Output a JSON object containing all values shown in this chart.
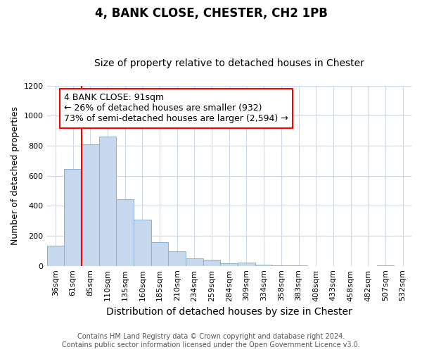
{
  "title": "4, BANK CLOSE, CHESTER, CH2 1PB",
  "subtitle": "Size of property relative to detached houses in Chester",
  "xlabel": "Distribution of detached houses by size in Chester",
  "ylabel": "Number of detached properties",
  "bar_labels": [
    "36sqm",
    "61sqm",
    "85sqm",
    "110sqm",
    "135sqm",
    "160sqm",
    "185sqm",
    "210sqm",
    "234sqm",
    "259sqm",
    "284sqm",
    "309sqm",
    "334sqm",
    "358sqm",
    "383sqm",
    "408sqm",
    "433sqm",
    "458sqm",
    "482sqm",
    "507sqm",
    "532sqm"
  ],
  "bar_values": [
    135,
    645,
    810,
    860,
    445,
    310,
    160,
    95,
    50,
    40,
    15,
    20,
    10,
    5,
    5,
    0,
    0,
    0,
    0,
    5,
    0
  ],
  "bar_color": "#c5d8ed",
  "bar_edge_color": "#8ab0d0",
  "ylim": [
    0,
    1200
  ],
  "yticks": [
    0,
    200,
    400,
    600,
    800,
    1000,
    1200
  ],
  "annotation_title": "4 BANK CLOSE: 91sqm",
  "annotation_line1": "← 26% of detached houses are smaller (932)",
  "annotation_line2": "73% of semi-detached houses are larger (2,594) →",
  "vline_bar_index": 2,
  "footer_line1": "Contains HM Land Registry data © Crown copyright and database right 2024.",
  "footer_line2": "Contains public sector information licensed under the Open Government Licence v3.0.",
  "background_color": "#ffffff",
  "grid_color": "#cdd8e8",
  "title_fontsize": 12,
  "subtitle_fontsize": 10,
  "xlabel_fontsize": 10,
  "ylabel_fontsize": 9,
  "tick_fontsize": 8,
  "annotation_fontsize": 9,
  "footer_fontsize": 7
}
